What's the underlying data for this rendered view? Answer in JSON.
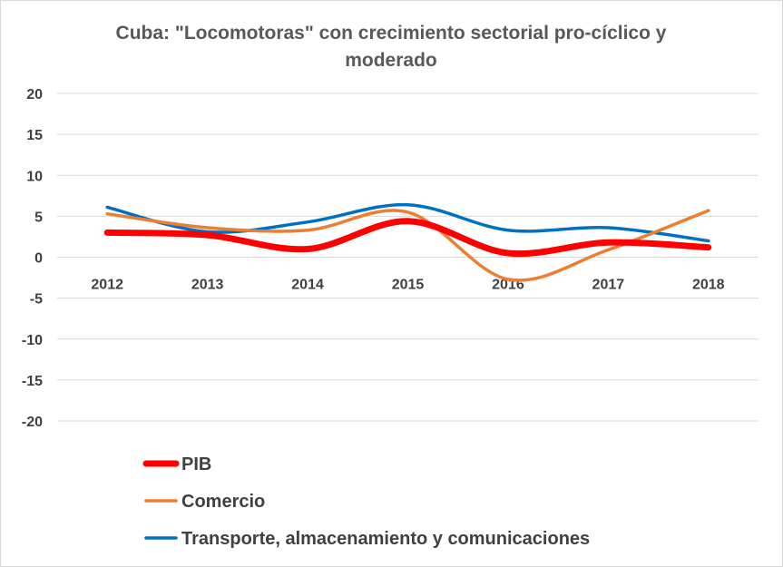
{
  "chart_data": {
    "type": "line",
    "title": "Cuba: \"Locomotoras\" con crecimiento sectorial pro-cíclico y moderado",
    "title_lines": [
      "Cuba: \"Locomotoras\" con crecimiento sectorial pro-cíclico y",
      "moderado"
    ],
    "xlabel": "",
    "ylabel": "",
    "categories": [
      "2012",
      "2013",
      "2014",
      "2015",
      "2016",
      "2017",
      "2018"
    ],
    "ylim": [
      -20,
      20
    ],
    "yticks": [
      20,
      15,
      10,
      5,
      0,
      -5,
      -10,
      -15,
      -20
    ],
    "ytick_labels": [
      "20",
      "15",
      "10",
      "5",
      "0",
      "-5",
      "-10",
      "-15",
      "-20"
    ],
    "grid": true,
    "smooth": true,
    "legend_position": "bottom",
    "series": [
      {
        "name": "PIB",
        "values": [
          3.0,
          2.7,
          1.0,
          4.4,
          0.5,
          1.8,
          1.2
        ],
        "color": "#ff0000",
        "width": 7
      },
      {
        "name": "Comercio",
        "values": [
          5.3,
          3.6,
          3.3,
          5.5,
          -2.7,
          0.9,
          5.7
        ],
        "color": "#ed7d31",
        "width": 3.5
      },
      {
        "name": "Transporte, almacenamiento y comunicaciones",
        "values": [
          6.1,
          3.1,
          4.3,
          6.4,
          3.3,
          3.6,
          2.0
        ],
        "color": "#0070c0",
        "width": 3.5
      }
    ]
  }
}
